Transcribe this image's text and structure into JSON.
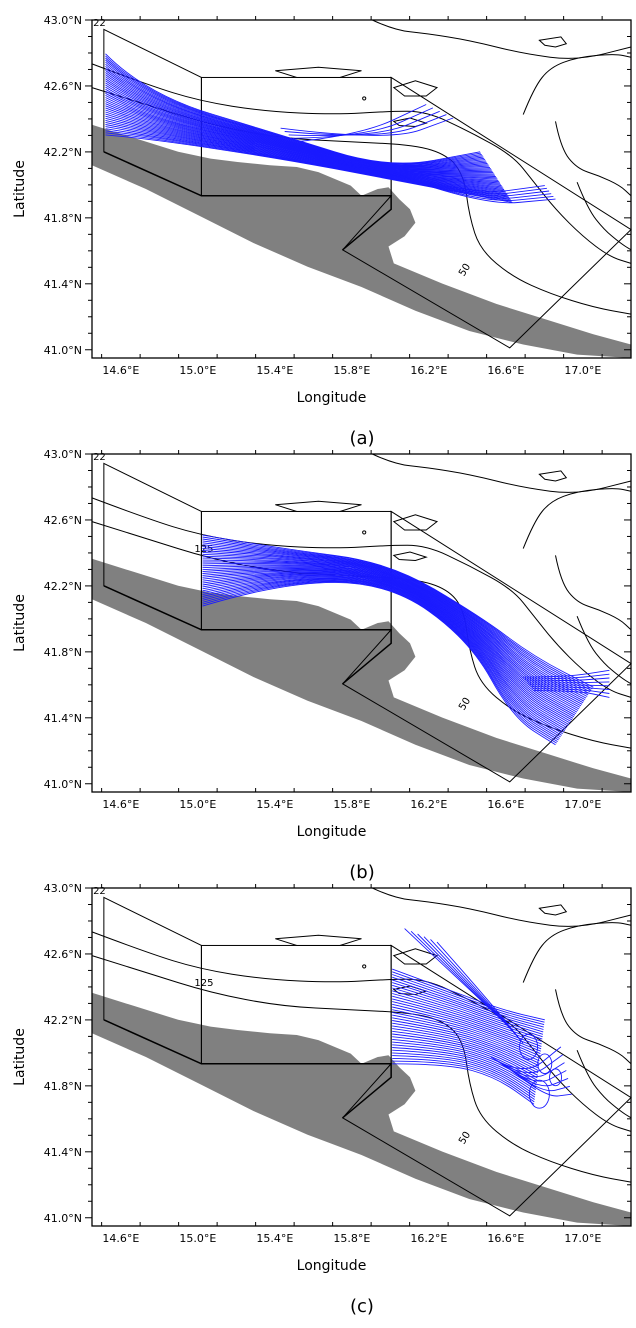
{
  "map": {
    "lon_ticks": [
      "14.6°E",
      "15.0°E",
      "15.4°E",
      "15.8°E",
      "16.2°E",
      "16.6°E",
      "17.0°E"
    ],
    "lat_ticks": [
      "43.0°N",
      "42.6°N",
      "42.2°N",
      "41.8°N",
      "41.4°N",
      "41.0°N"
    ],
    "xlabel": "Longitude",
    "ylabel": "Latitude",
    "lon_range": [
      14.45,
      17.25
    ],
    "lat_range": [
      40.95,
      43.0
    ],
    "contour_labels": [
      "50",
      "125",
      "22"
    ],
    "colors": {
      "trajectory": "#1a1aff",
      "land": "#808080",
      "contour": "#000000"
    }
  },
  "panels": [
    {
      "label": "(a)",
      "release_region": "left box",
      "show_125_label": false
    },
    {
      "label": "(b)",
      "release_region": "middle box",
      "show_125_label": true
    },
    {
      "label": "(c)",
      "release_region": "right box",
      "show_125_label": true
    }
  ]
}
